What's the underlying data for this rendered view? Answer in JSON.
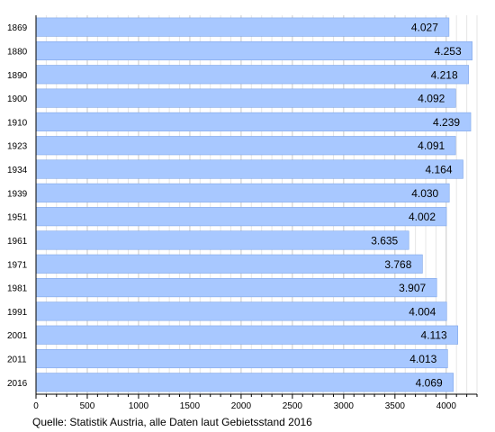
{
  "chart_data": {
    "type": "bar",
    "orientation": "horizontal",
    "categories": [
      "1869",
      "1880",
      "1890",
      "1900",
      "1910",
      "1923",
      "1934",
      "1939",
      "1951",
      "1961",
      "1971",
      "1981",
      "1991",
      "2001",
      "2011",
      "2016"
    ],
    "values": [
      4027,
      4253,
      4218,
      4092,
      4239,
      4091,
      4164,
      4030,
      4002,
      3635,
      3768,
      3907,
      4004,
      4113,
      4013,
      4069
    ],
    "value_labels": [
      "4.027",
      "4.253",
      "4.218",
      "4.092",
      "4.239",
      "4.091",
      "4.164",
      "4.030",
      "4.002",
      "3.635",
      "3.768",
      "3.907",
      "4.004",
      "4.113",
      "4.013",
      "4.069"
    ],
    "x_ticks": [
      0,
      500,
      1000,
      1500,
      2000,
      2500,
      3000,
      3500,
      4000
    ],
    "xlim": [
      0,
      4300
    ],
    "grid": "vertical",
    "title": "",
    "xlabel": "",
    "ylabel": "",
    "bar_color": "#a8c8ff",
    "bar_edge_color": "#7fa6e8"
  },
  "source": "Quelle: Statistik Austria, alle Daten laut Gebietsstand 2016"
}
